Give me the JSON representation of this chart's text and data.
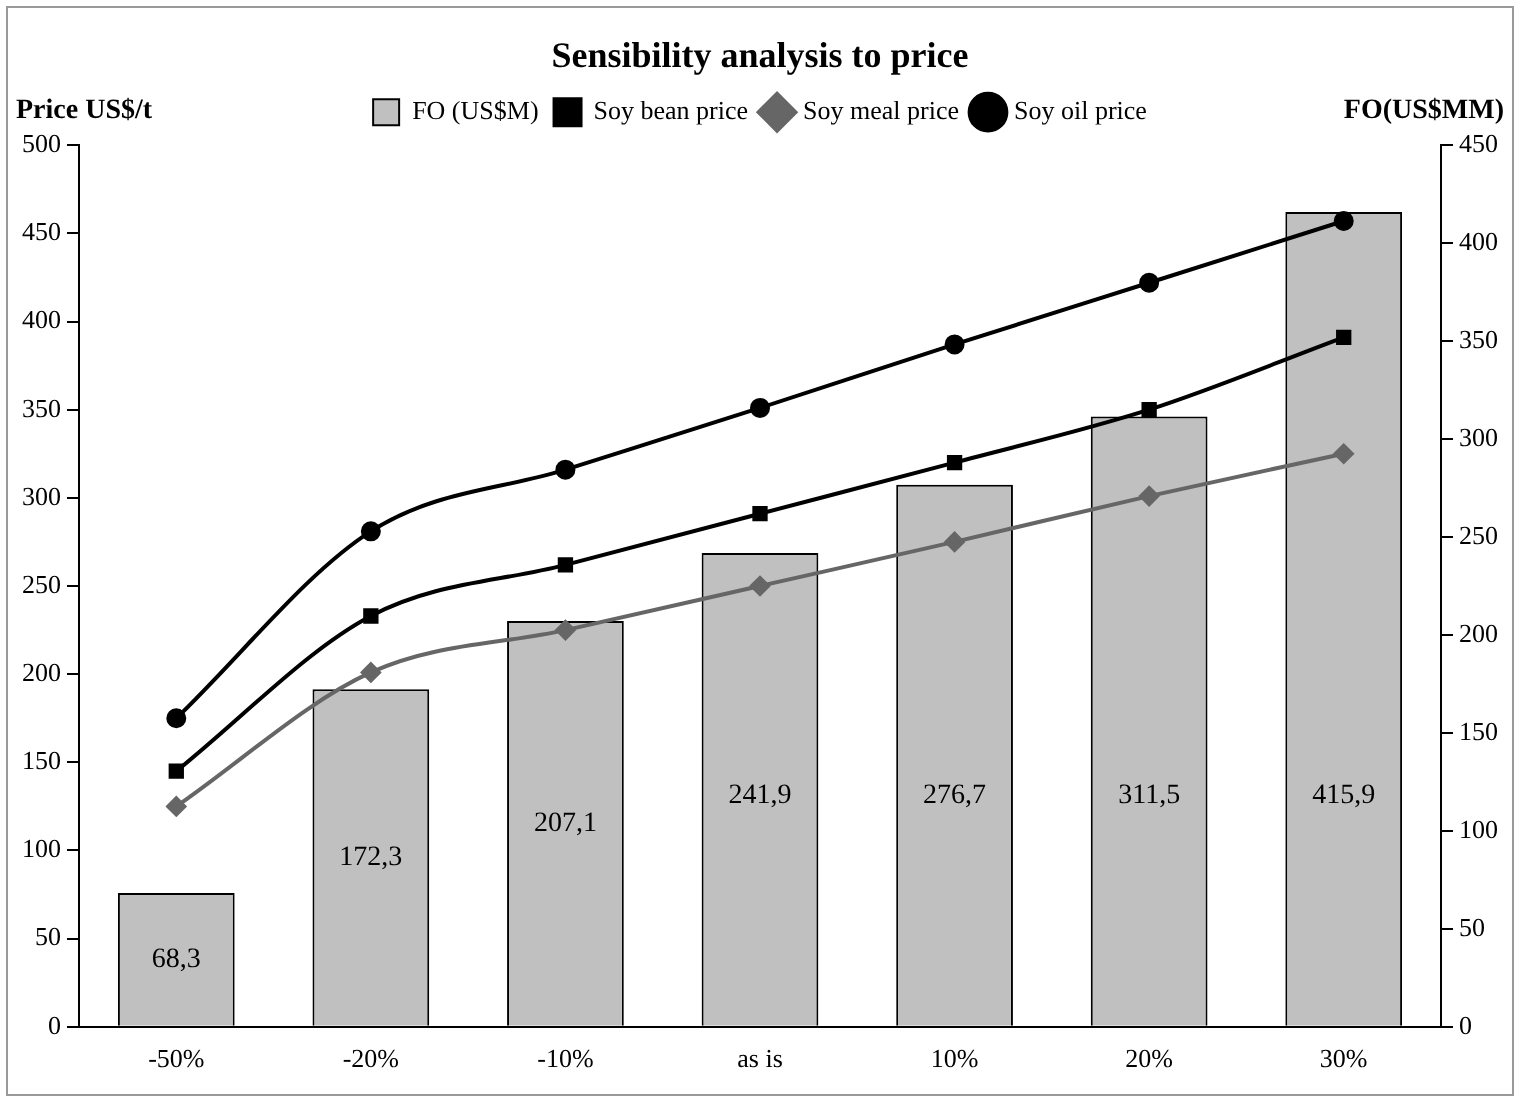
{
  "chart_data": {
    "type": "bar",
    "title": "Sensibility analysis to price",
    "ylabel": "Price US$/t",
    "y2label": "FO(US$MM)",
    "categories": [
      "-50%",
      "-20%",
      "-10%",
      "as is",
      "10%",
      "20%",
      "30%"
    ],
    "series": [
      {
        "name": "FO (US$M)",
        "axis": "y2",
        "color": "#c0c0c0",
        "values": [
          68.3,
          172.3,
          207.1,
          241.9,
          276.7,
          311.5,
          415.9
        ],
        "value_labels": [
          "68,3",
          "172,3",
          "207,1",
          "241,9",
          "276,7",
          "311,5",
          "415,9"
        ]
      },
      {
        "name": "Soy bean price",
        "type": "line",
        "marker": "square",
        "color": "#000000",
        "values": [
          145,
          233,
          262,
          291,
          320,
          350,
          391
        ]
      },
      {
        "name": "Soy meal price",
        "type": "line",
        "marker": "diamond",
        "color": "#666666",
        "values": [
          125,
          201,
          225,
          250,
          275,
          301,
          325
        ]
      },
      {
        "name": "Soy oil price",
        "type": "line",
        "marker": "circle",
        "color": "#000000",
        "values": [
          175,
          281,
          316,
          351,
          387,
          422,
          457
        ]
      }
    ],
    "ylim": [
      0,
      500
    ],
    "yticks": [
      0,
      50,
      100,
      150,
      200,
      250,
      300,
      350,
      400,
      450,
      500
    ],
    "y2lim": [
      0,
      450
    ],
    "y2ticks": [
      0,
      50,
      100,
      150,
      200,
      250,
      300,
      350,
      400,
      450
    ],
    "grid": false,
    "legend": "top"
  }
}
